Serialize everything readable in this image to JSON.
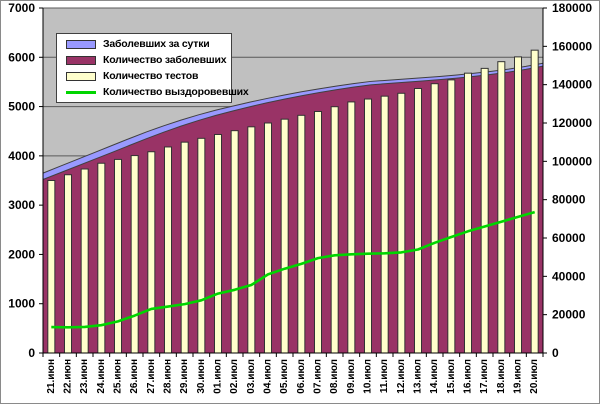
{
  "chart_data": {
    "type": "combo",
    "title": "",
    "plot_bg": "#C0C0C0",
    "grid": true,
    "legend_position": "top-left",
    "categories": [
      "21.июн",
      "22.июн",
      "23.июн",
      "24.июн",
      "25.июн",
      "26.июн",
      "27.июн",
      "28.июн",
      "29.июн",
      "30.июн",
      "01.июл",
      "02.июл",
      "03.июл",
      "04.июл",
      "05.июл",
      "06.июл",
      "07.июл",
      "08.июл",
      "09.июл",
      "10.июл",
      "11.июл",
      "12.июл",
      "13.июл",
      "14.июл",
      "15.июл",
      "16.июл",
      "17.июл",
      "18.июл",
      "19.июл",
      "20.июл"
    ],
    "left_axis": {
      "min": 0,
      "max": 7000,
      "step": 1000,
      "ticks": [
        "0",
        "1000",
        "2000",
        "3000",
        "4000",
        "5000",
        "6000",
        "7000"
      ]
    },
    "right_axis": {
      "min": 0,
      "max": 180000,
      "step": 20000,
      "ticks": [
        "0",
        "20000",
        "40000",
        "60000",
        "80000",
        "100000",
        "120000",
        "140000",
        "160000",
        "180000"
      ]
    },
    "series": [
      {
        "name": "Заболевших за сутки",
        "type": "area-stacked-top",
        "axis": "left",
        "color": "#9999FF",
        "values": [
          130,
          133,
          136,
          138,
          140,
          140,
          136,
          130,
          122,
          114,
          106,
          99,
          93,
          88,
          84,
          80,
          77,
          74,
          71,
          69,
          67,
          66,
          65,
          64,
          63,
          62,
          61,
          61,
          60,
          60
        ]
      },
      {
        "name": "Количество заболевших",
        "type": "area",
        "axis": "left",
        "color": "#993366",
        "values": [
          3520,
          3657,
          3794,
          3932,
          4070,
          4210,
          4349,
          4480,
          4603,
          4716,
          4819,
          4911,
          4997,
          5077,
          5151,
          5220,
          5283,
          5341,
          5394,
          5441,
          5468,
          5494,
          5520,
          5546,
          5577,
          5613,
          5654,
          5699,
          5755,
          5820
        ]
      },
      {
        "name": "Количество тестов",
        "type": "bar",
        "axis": "right",
        "color": "#FFFFCC",
        "values": [
          90000,
          93000,
          96000,
          99000,
          101000,
          103000,
          105000,
          107500,
          110000,
          112000,
          114000,
          116000,
          118000,
          120000,
          122000,
          124000,
          126000,
          128500,
          131000,
          132500,
          134000,
          135500,
          138000,
          140500,
          142500,
          146000,
          148500,
          152000,
          154500,
          158000
        ]
      },
      {
        "name": "Количество выздоровевших",
        "type": "line",
        "axis": "right",
        "color": "#00D500",
        "values": [
          13500,
          13400,
          13600,
          14500,
          16500,
          19500,
          23000,
          24200,
          25500,
          27500,
          31000,
          33000,
          35500,
          41000,
          44000,
          46500,
          49500,
          51000,
          51500,
          51800,
          52000,
          52500,
          54000,
          57500,
          60500,
          63500,
          66000,
          68500,
          71000,
          73500
        ]
      }
    ]
  }
}
